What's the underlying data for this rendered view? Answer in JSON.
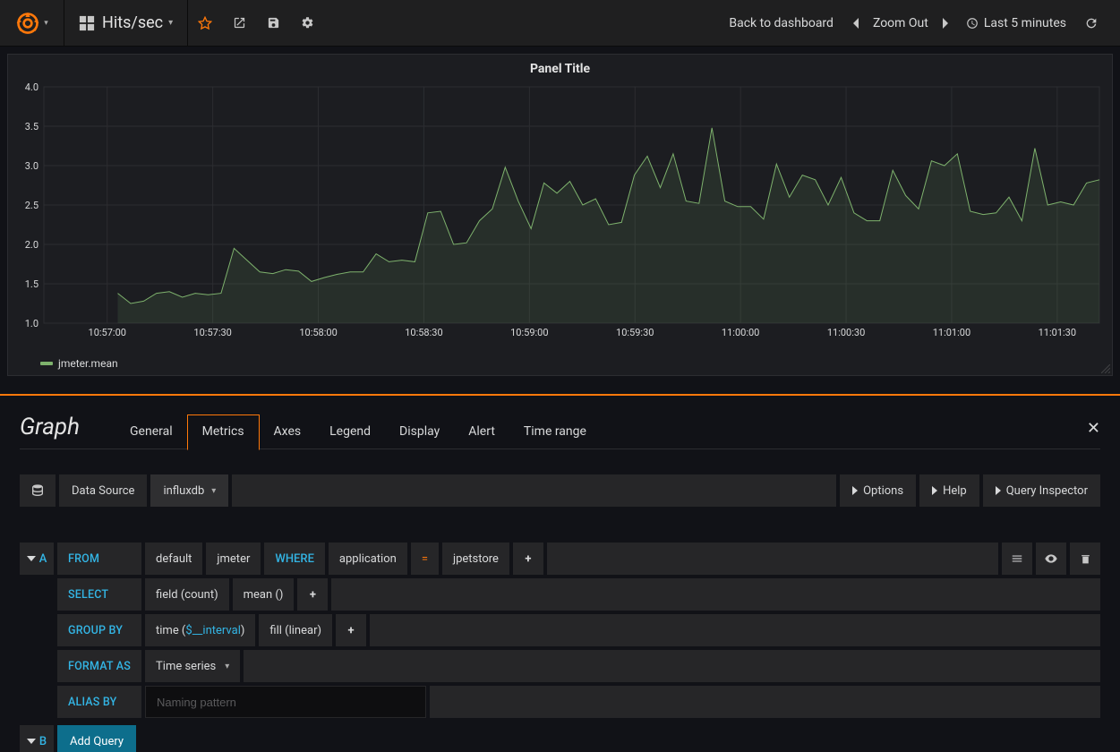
{
  "nav": {
    "dashboard_title": "Hits/sec",
    "back_link": "Back to dashboard",
    "zoom_label": "Zoom Out",
    "time_label": "Last 5 minutes"
  },
  "panel": {
    "title": "Panel Title",
    "legend_label": "jmeter.mean"
  },
  "chart": {
    "type": "line",
    "line_color": "#7eb26d",
    "fill_color": "rgba(126,178,109,0.12)",
    "background_color": "#1c1d21",
    "grid_color": "#2c2d31",
    "axis_text_color": "#d8d9da",
    "axis_fontsize": 11,
    "line_width": 1,
    "y_min": 1.0,
    "y_max": 4.0,
    "y_step": 0.5,
    "y_ticks": [
      "1.0",
      "1.5",
      "2.0",
      "2.5",
      "3.0",
      "3.5",
      "4.0"
    ],
    "x_ticks": [
      "10:57:00",
      "10:57:30",
      "10:58:00",
      "10:58:30",
      "10:59:00",
      "10:59:30",
      "11:00:00",
      "11:00:30",
      "11:01:00",
      "11:01:30"
    ],
    "x_min": 0,
    "x_max": 300,
    "values": [
      1.38,
      1.25,
      1.28,
      1.38,
      1.4,
      1.33,
      1.38,
      1.36,
      1.38,
      1.95,
      1.8,
      1.65,
      1.63,
      1.68,
      1.66,
      1.53,
      1.58,
      1.62,
      1.65,
      1.65,
      1.88,
      1.78,
      1.8,
      1.78,
      2.4,
      2.42,
      2.0,
      2.02,
      2.3,
      2.45,
      2.98,
      2.55,
      2.2,
      2.78,
      2.65,
      2.8,
      2.5,
      2.58,
      2.25,
      2.28,
      2.88,
      3.12,
      2.72,
      3.15,
      2.55,
      2.52,
      3.48,
      2.55,
      2.48,
      2.48,
      2.32,
      3.02,
      2.6,
      2.88,
      2.82,
      2.5,
      2.85,
      2.4,
      2.3,
      2.3,
      2.94,
      2.62,
      2.45,
      3.06,
      3.0,
      3.15,
      2.42,
      2.38,
      2.4,
      2.6,
      2.3,
      3.22,
      2.5,
      2.54,
      2.5,
      2.78,
      2.82
    ]
  },
  "editor": {
    "panel_type": "Graph",
    "tabs": [
      "General",
      "Metrics",
      "Axes",
      "Legend",
      "Display",
      "Alert",
      "Time range"
    ],
    "active_tab": "Metrics",
    "datasource_label": "Data Source",
    "datasource_value": "influxdb",
    "options_label": "Options",
    "help_label": "Help",
    "inspector_label": "Query Inspector"
  },
  "queryA": {
    "letter": "A",
    "from_label": "FROM",
    "from_policy": "default",
    "from_measurement": "jmeter",
    "where_label": "WHERE",
    "where_field": "application",
    "where_op": "=",
    "where_value": "jpetstore",
    "select_label": "SELECT",
    "select_field": "field (count)",
    "select_agg": "mean ()",
    "groupby_label": "GROUP BY",
    "groupby_time_prefix": "time (",
    "groupby_time_var": "$__interval",
    "groupby_time_suffix": ")",
    "groupby_fill": "fill (linear)",
    "format_label": "FORMAT AS",
    "format_value": "Time series",
    "alias_label": "ALIAS BY",
    "alias_placeholder": "Naming pattern"
  },
  "queryB": {
    "letter": "B",
    "add_query_label": "Add Query"
  }
}
